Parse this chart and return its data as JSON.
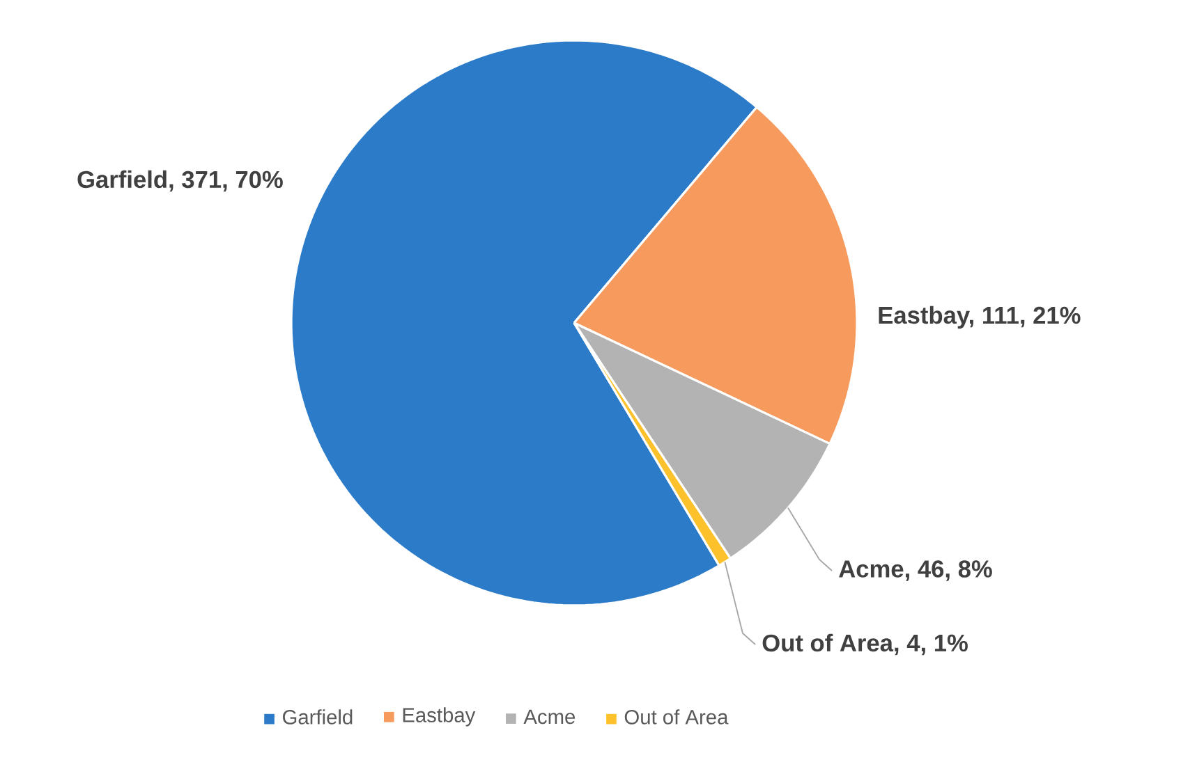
{
  "chart_data": {
    "type": "pie",
    "categories": [
      "Garfield",
      "Eastbay",
      "Acme",
      "Out of Area"
    ],
    "values": [
      371,
      111,
      46,
      4
    ],
    "colors": [
      "#2b7bc9",
      "#f79a5e",
      "#b3b3b3",
      "#fdc12b"
    ],
    "value_labels": [
      "Garfield, 371, 70%",
      "Eastbay, 111, 21%",
      "Acme, 46, 8%",
      "Out of Area, 4, 1%"
    ],
    "legend": "bottom"
  }
}
